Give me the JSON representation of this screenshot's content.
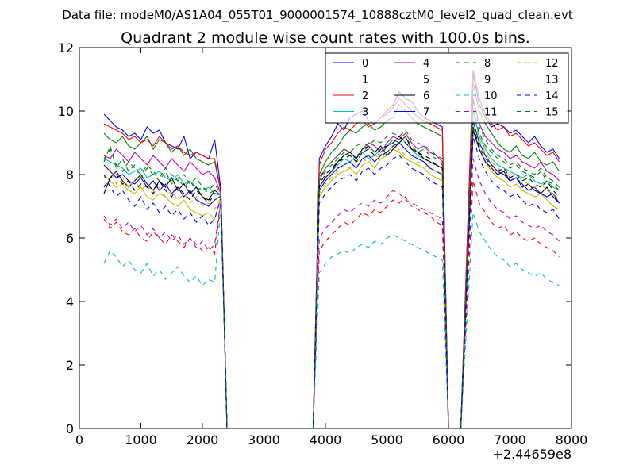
{
  "chart_data": {
    "type": "line",
    "suptitle": "Data file: modeM0/AS1A04_055T01_9000001574_10888cztM0_level2_quad_clean.evt",
    "title": "Quadrant 2 module wise count rates with 100.0s bins.",
    "xlabel": "",
    "ylabel": "",
    "x_offset_label": "+2.44659e8",
    "xlim": [
      0,
      8000
    ],
    "ylim": [
      0,
      12
    ],
    "x_ticks": [
      0,
      1000,
      2000,
      3000,
      4000,
      5000,
      6000,
      7000,
      8000
    ],
    "y_ticks": [
      0,
      2,
      4,
      6,
      8,
      10,
      12
    ],
    "legend_location": "upper-right",
    "legend_columns": 4,
    "legend_labels": [
      "0",
      "1",
      "2",
      "3",
      "4",
      "5",
      "6",
      "7",
      "8",
      "9",
      "10",
      "11",
      "12",
      "13",
      "14",
      "15"
    ],
    "series_colors": [
      "#0000ff",
      "#008000",
      "#ff0000",
      "#00bfbf",
      "#bf00bf",
      "#bfbf00",
      "#000000",
      "#0000ff",
      "#008000",
      "#ff0000",
      "#00bfbf",
      "#bf00bf",
      "#bfbf00",
      "#000000",
      "#0000ff",
      "#008000"
    ],
    "series_dashed": [
      false,
      false,
      false,
      false,
      false,
      false,
      false,
      false,
      true,
      true,
      true,
      true,
      true,
      true,
      true,
      true
    ],
    "segments": [
      {
        "x_start": 400,
        "x_end": 2200,
        "n": 19
      },
      {
        "x_start": 3900,
        "x_end": 5900,
        "n": 21
      },
      {
        "x_start": 6400,
        "x_end": 7800,
        "n": 15
      }
    ],
    "gap_points": [
      [
        2300,
        1
      ],
      [
        2400,
        0
      ],
      [
        3000,
        0
      ],
      [
        3800,
        0
      ]
    ],
    "gap_points_2": [
      [
        6000,
        0
      ],
      [
        6200,
        0
      ]
    ],
    "series": [
      {
        "name": "0",
        "segments": [
          [
            9.9,
            9.7,
            9.5,
            9.4,
            9.2,
            9.3,
            9.1,
            9.5,
            9.3,
            9.4,
            9.0,
            8.9,
            8.8,
            9.2,
            8.5,
            8.7,
            8.6,
            8.5,
            9.1
          ],
          [
            8.5,
            8.9,
            9.2,
            9.6,
            9.4,
            9.8,
            9.9,
            10.0,
            9.7,
            9.6,
            9.8,
            10.0,
            10.2,
            10.6,
            10.4,
            10.3,
            10.0,
            9.8,
            9.7,
            9.6,
            9.5
          ],
          [
            11.2,
            10.2,
            9.8,
            9.5,
            9.6,
            9.5,
            9.3,
            9.4,
            9.2,
            9.0,
            9.2,
            8.9,
            8.7,
            8.8,
            8.5
          ]
        ]
      },
      {
        "name": "1",
        "segments": [
          [
            9.3,
            9.1,
            9.0,
            9.2,
            8.9,
            8.8,
            9.0,
            9.2,
            8.8,
            9.1,
            9.0,
            8.7,
            8.9,
            8.6,
            8.8,
            8.5,
            8.4,
            8.3,
            8.4
          ],
          [
            8.0,
            8.4,
            8.7,
            8.9,
            9.2,
            9.4,
            9.3,
            9.5,
            9.6,
            9.4,
            9.5,
            9.7,
            9.8,
            10.2,
            10.0,
            9.8,
            9.6,
            9.5,
            9.4,
            9.3,
            9.2
          ],
          [
            10.9,
            10.0,
            9.6,
            9.3,
            9.0,
            8.8,
            8.7,
            8.9,
            8.6,
            8.5,
            8.7,
            8.4,
            8.3,
            8.4,
            8.1
          ]
        ]
      },
      {
        "name": "2",
        "segments": [
          [
            9.6,
            9.5,
            9.4,
            9.3,
            9.1,
            9.2,
            9.0,
            9.1,
            8.9,
            9.2,
            9.0,
            8.8,
            8.9,
            8.7,
            8.6,
            8.7,
            8.6,
            8.5,
            8.5
          ],
          [
            8.3,
            8.8,
            9.0,
            9.3,
            9.5,
            9.4,
            9.6,
            9.7,
            9.5,
            9.6,
            9.8,
            9.9,
            10.1,
            10.4,
            10.2,
            10.0,
            9.8,
            9.7,
            9.6,
            9.5,
            9.4
          ],
          [
            11.3,
            10.4,
            9.9,
            9.6,
            9.4,
            9.5,
            9.2,
            9.3,
            9.1,
            8.9,
            9.0,
            8.8,
            8.6,
            8.7,
            8.4
          ]
        ]
      },
      {
        "name": "3",
        "segments": [
          [
            8.5,
            8.4,
            8.3,
            8.2,
            8.0,
            8.1,
            8.2,
            7.9,
            8.0,
            8.1,
            7.9,
            7.8,
            8.0,
            7.7,
            7.8,
            7.6,
            7.5,
            7.6,
            7.4
          ],
          [
            7.6,
            7.9,
            8.1,
            8.3,
            8.5,
            8.4,
            8.6,
            8.7,
            8.5,
            8.6,
            8.8,
            8.9,
            9.0,
            9.2,
            9.0,
            8.8,
            8.6,
            8.5,
            8.4,
            8.3,
            8.2
          ],
          [
            10.0,
            9.2,
            8.8,
            8.5,
            8.3,
            8.2,
            8.1,
            8.0,
            7.9,
            8.0,
            7.8,
            7.7,
            7.8,
            7.6,
            7.5
          ]
        ]
      },
      {
        "name": "4",
        "segments": [
          [
            8.6,
            8.5,
            8.8,
            8.6,
            8.4,
            8.7,
            8.5,
            8.3,
            8.6,
            8.4,
            8.2,
            8.5,
            8.3,
            8.1,
            8.4,
            8.2,
            8.0,
            8.1,
            7.9
          ],
          [
            7.8,
            8.2,
            8.4,
            8.6,
            8.8,
            8.7,
            8.5,
            8.8,
            9.0,
            8.9,
            8.7,
            9.0,
            9.2,
            9.1,
            9.3,
            9.0,
            8.8,
            8.9,
            8.7,
            8.6,
            8.4
          ],
          [
            10.4,
            9.6,
            9.2,
            9.0,
            8.8,
            8.7,
            8.5,
            8.6,
            8.4,
            8.3,
            8.2,
            8.4,
            8.1,
            8.0,
            7.8
          ]
        ]
      },
      {
        "name": "5",
        "segments": [
          [
            8.0,
            7.8,
            7.6,
            7.7,
            7.5,
            7.4,
            7.6,
            7.3,
            7.2,
            7.4,
            7.3,
            7.1,
            7.0,
            7.2,
            6.9,
            6.8,
            6.7,
            6.8,
            6.6
          ],
          [
            7.3,
            7.6,
            7.8,
            8.0,
            8.1,
            8.2,
            8.0,
            8.3,
            8.4,
            8.2,
            8.5,
            8.6,
            8.8,
            8.7,
            8.5,
            8.4,
            8.3,
            8.2,
            8.0,
            7.9,
            7.8
          ],
          [
            9.5,
            8.8,
            8.4,
            8.1,
            7.9,
            7.8,
            7.6,
            7.7,
            7.5,
            7.4,
            7.3,
            7.4,
            7.2,
            7.0,
            6.9
          ]
        ]
      },
      {
        "name": "6",
        "segments": [
          [
            7.4,
            7.9,
            8.1,
            7.8,
            7.6,
            7.8,
            8.0,
            7.7,
            7.5,
            7.8,
            7.6,
            7.9,
            7.5,
            7.7,
            7.4,
            7.6,
            7.3,
            7.2,
            7.5
          ],
          [
            7.6,
            7.9,
            8.1,
            8.4,
            8.6,
            8.7,
            8.5,
            8.8,
            8.9,
            8.7,
            8.9,
            8.6,
            8.8,
            9.0,
            9.2,
            8.8,
            8.7,
            8.5,
            8.4,
            8.3,
            8.2
          ],
          [
            9.4,
            8.8,
            8.4,
            8.2,
            8.0,
            8.1,
            7.8,
            7.9,
            7.6,
            7.7,
            7.5,
            7.4,
            7.6,
            7.3,
            7.1
          ]
        ]
      },
      {
        "name": "7",
        "segments": [
          [
            8.3,
            8.1,
            7.9,
            8.0,
            7.8,
            7.7,
            7.9,
            7.6,
            7.8,
            7.5,
            7.7,
            7.4,
            7.6,
            7.3,
            7.5,
            7.2,
            7.1,
            7.0,
            7.2
          ],
          [
            7.5,
            7.8,
            8.0,
            8.2,
            8.3,
            8.4,
            8.2,
            8.5,
            8.6,
            8.4,
            8.6,
            8.7,
            8.9,
            9.0,
            8.8,
            8.6,
            8.5,
            8.4,
            8.2,
            8.1,
            8.0
          ],
          [
            9.7,
            9.0,
            8.6,
            8.3,
            8.1,
            8.0,
            7.8,
            7.9,
            7.7,
            7.5,
            7.6,
            7.4,
            7.3,
            7.4,
            7.1
          ]
        ]
      },
      {
        "name": "8",
        "segments": [
          [
            8.5,
            8.8,
            8.3,
            8.1,
            8.4,
            8.2,
            8.0,
            8.3,
            8.1,
            7.9,
            8.2,
            8.0,
            7.8,
            8.0,
            7.7,
            7.9,
            7.6,
            7.5,
            7.7
          ],
          [
            7.8,
            8.1,
            8.3,
            8.5,
            8.7,
            8.6,
            8.4,
            8.7,
            8.9,
            8.7,
            8.6,
            8.9,
            9.1,
            9.0,
            9.2,
            8.9,
            8.7,
            8.8,
            8.6,
            8.5,
            8.3
          ],
          [
            10.1,
            9.3,
            8.9,
            8.7,
            8.5,
            8.4,
            8.2,
            8.3,
            8.1,
            8.0,
            7.9,
            8.1,
            7.8,
            7.7,
            7.5
          ]
        ]
      },
      {
        "name": "9",
        "segments": [
          [
            6.6,
            6.3,
            6.5,
            6.2,
            6.1,
            6.3,
            6.0,
            5.9,
            6.2,
            6.0,
            5.8,
            6.1,
            5.9,
            5.7,
            6.0,
            5.8,
            5.6,
            5.7,
            5.5
          ],
          [
            5.6,
            5.9,
            6.1,
            6.3,
            6.5,
            6.4,
            6.6,
            6.8,
            6.7,
            6.9,
            6.8,
            7.0,
            7.2,
            7.1,
            7.3,
            7.0,
            6.9,
            6.8,
            6.7,
            6.5,
            6.4
          ],
          [
            7.8,
            7.1,
            6.8,
            6.5,
            6.3,
            6.4,
            6.1,
            6.2,
            6.0,
            5.9,
            6.0,
            5.8,
            5.7,
            5.6,
            5.4
          ]
        ]
      },
      {
        "name": "10",
        "segments": [
          [
            5.2,
            5.6,
            5.4,
            5.1,
            5.3,
            5.0,
            4.9,
            5.2,
            4.8,
            5.0,
            4.7,
            4.9,
            5.1,
            4.8,
            4.6,
            4.8,
            4.5,
            4.7,
            4.6
          ],
          [
            4.9,
            5.2,
            5.4,
            5.5,
            5.6,
            5.5,
            5.7,
            5.8,
            5.7,
            5.9,
            5.8,
            6.0,
            6.1,
            6.0,
            5.9,
            5.8,
            5.7,
            5.6,
            5.5,
            5.4,
            5.3
          ],
          [
            6.8,
            6.2,
            5.9,
            5.6,
            5.4,
            5.3,
            5.1,
            5.2,
            5.0,
            4.9,
            4.8,
            4.9,
            4.7,
            4.6,
            4.5
          ]
        ]
      },
      {
        "name": "11",
        "segments": [
          [
            6.7,
            6.4,
            6.6,
            6.3,
            6.5,
            6.2,
            6.4,
            6.1,
            6.3,
            6.0,
            6.2,
            5.9,
            6.1,
            5.8,
            6.0,
            5.7,
            5.9,
            5.6,
            5.8
          ],
          [
            6.0,
            6.3,
            6.5,
            6.7,
            6.9,
            6.8,
            7.0,
            7.1,
            7.0,
            7.2,
            7.1,
            7.3,
            7.5,
            7.4,
            7.2,
            7.1,
            7.0,
            6.9,
            6.8,
            6.7,
            6.6
          ],
          [
            8.5,
            7.8,
            7.4,
            7.1,
            6.9,
            6.8,
            6.6,
            6.7,
            6.5,
            6.4,
            6.3,
            6.4,
            6.2,
            6.1,
            5.9
          ]
        ]
      },
      {
        "name": "12",
        "segments": [
          [
            7.9,
            8.2,
            7.7,
            7.9,
            7.6,
            7.8,
            7.5,
            7.7,
            7.4,
            7.6,
            7.3,
            7.5,
            7.2,
            7.4,
            7.1,
            7.3,
            7.0,
            7.1,
            6.9
          ],
          [
            7.4,
            7.7,
            7.9,
            8.1,
            8.3,
            8.2,
            8.4,
            8.5,
            8.4,
            8.6,
            8.5,
            8.7,
            8.9,
            8.8,
            8.6,
            8.5,
            8.4,
            8.3,
            8.2,
            8.1,
            8.0
          ],
          [
            9.8,
            9.1,
            8.7,
            8.4,
            8.2,
            8.1,
            7.9,
            8.0,
            7.8,
            7.7,
            7.6,
            7.7,
            7.5,
            7.4,
            7.2
          ]
        ]
      },
      {
        "name": "13",
        "segments": [
          [
            7.6,
            7.9,
            8.0,
            7.7,
            7.8,
            7.5,
            7.7,
            7.6,
            7.4,
            7.8,
            7.5,
            7.3,
            7.6,
            7.4,
            7.2,
            7.5,
            7.3,
            7.1,
            7.4
          ],
          [
            7.7,
            8.0,
            8.2,
            8.4,
            8.5,
            8.6,
            8.4,
            8.7,
            8.8,
            8.6,
            8.8,
            8.9,
            9.0,
            9.2,
            9.0,
            8.8,
            8.7,
            8.6,
            8.5,
            8.3,
            8.2
          ],
          [
            9.5,
            8.9,
            8.5,
            8.3,
            8.1,
            8.2,
            7.9,
            8.0,
            7.8,
            7.9,
            7.7,
            7.6,
            7.8,
            7.5,
            7.3
          ]
        ]
      },
      {
        "name": "14",
        "segments": [
          [
            8.0,
            7.6,
            7.3,
            7.5,
            7.2,
            7.0,
            7.3,
            6.9,
            7.1,
            6.8,
            7.0,
            6.7,
            6.9,
            6.6,
            6.8,
            6.5,
            6.7,
            6.4,
            6.6
          ],
          [
            7.1,
            7.4,
            7.6,
            7.8,
            7.9,
            8.0,
            7.8,
            8.1,
            8.2,
            8.0,
            8.2,
            8.3,
            8.5,
            8.6,
            8.4,
            8.2,
            8.1,
            8.0,
            7.8,
            7.7,
            7.6
          ],
          [
            9.2,
            8.5,
            8.1,
            7.8,
            7.6,
            7.5,
            7.3,
            7.4,
            7.2,
            7.0,
            7.1,
            6.9,
            6.8,
            6.9,
            6.6
          ]
        ]
      },
      {
        "name": "15",
        "segments": [
          [
            8.4,
            8.9,
            8.2,
            8.5,
            8.1,
            8.3,
            7.9,
            8.2,
            8.0,
            7.8,
            8.1,
            7.7,
            7.9,
            7.6,
            7.8,
            7.5,
            7.6,
            7.4,
            7.5
          ],
          [
            7.9,
            8.2,
            8.4,
            8.6,
            8.8,
            8.7,
            8.9,
            9.0,
            8.9,
            9.1,
            9.0,
            9.2,
            9.3,
            9.2,
            9.4,
            9.1,
            9.0,
            8.9,
            8.8,
            8.6,
            8.5
          ],
          [
            10.3,
            9.5,
            9.1,
            8.8,
            8.6,
            8.5,
            8.3,
            8.4,
            8.2,
            8.1,
            8.0,
            8.2,
            7.9,
            7.8,
            7.6
          ]
        ]
      }
    ]
  }
}
